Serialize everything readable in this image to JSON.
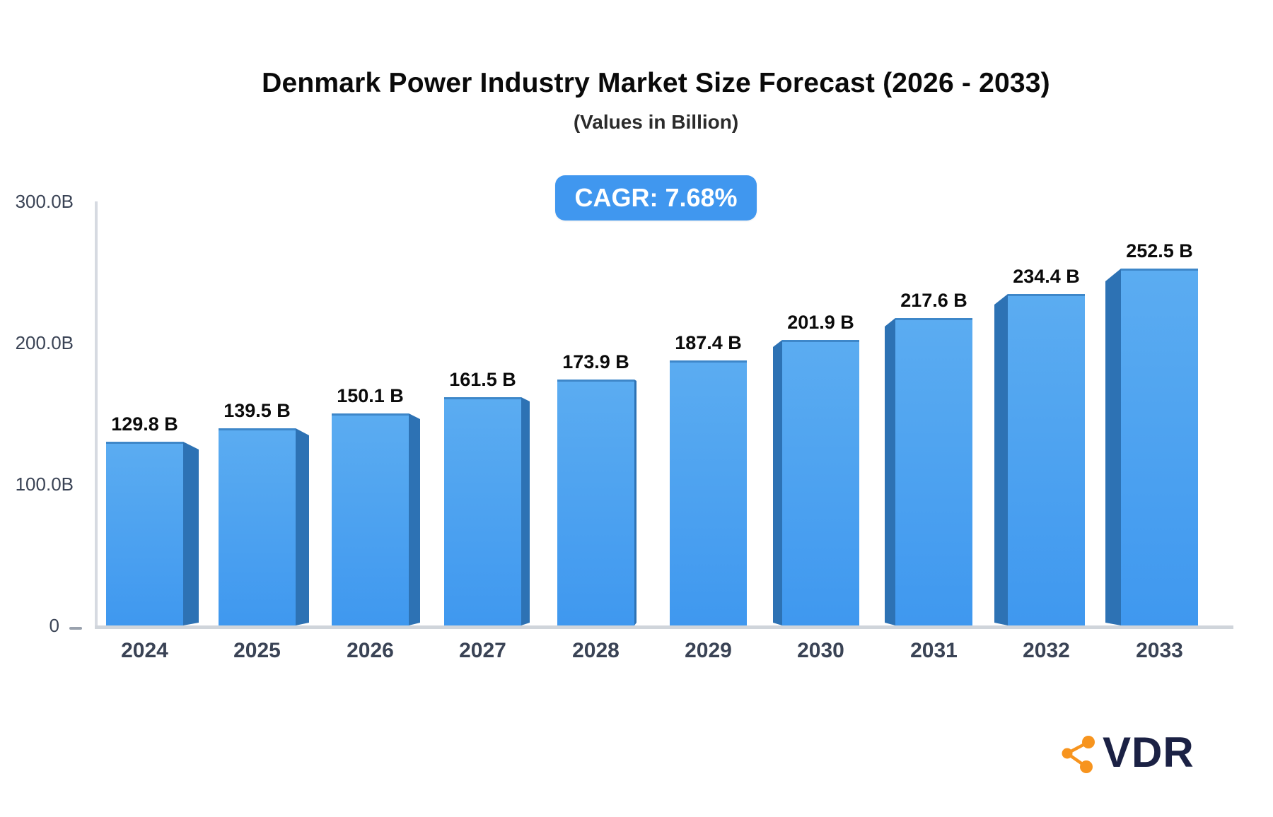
{
  "header": {
    "title": "Denmark Power Industry Market Size Forecast (2026 - 2033)",
    "subtitle": "(Values in Billion)",
    "cagr_label": "CAGR: 7.68%"
  },
  "brand": {
    "name": "VDR",
    "icon": "share-network-icon",
    "icon_color": "#F7941E",
    "text_color": "#1B2144"
  },
  "chart_data": {
    "type": "bar",
    "title": "Denmark Power Industry Market Size Forecast (2026 - 2033)",
    "subtitle": "(Values in Billion)",
    "annotation": "CAGR: 7.68%",
    "categories": [
      "2024",
      "2025",
      "2026",
      "2027",
      "2028",
      "2029",
      "2030",
      "2031",
      "2032",
      "2033"
    ],
    "values": [
      129.8,
      139.5,
      150.1,
      161.5,
      173.9,
      187.4,
      201.9,
      217.6,
      234.4,
      252.5
    ],
    "value_labels": [
      "129.8 B",
      "139.5 B",
      "150.1 B",
      "161.5 B",
      "173.9 B",
      "187.4 B",
      "201.9 B",
      "217.6 B",
      "234.4 B",
      "252.5 B"
    ],
    "unit": "Billion",
    "xlabel": "",
    "ylabel": "",
    "ylim": [
      0,
      300
    ],
    "y_ticks": [
      {
        "label": "300.0B",
        "value": 300,
        "tick_dash": false
      },
      {
        "label": "200.0B",
        "value": 200,
        "tick_dash": false
      },
      {
        "label": "100.0B",
        "value": 100,
        "tick_dash": false
      },
      {
        "label": "0",
        "value": 0,
        "tick_dash": true
      }
    ],
    "grid": false,
    "legend": false,
    "style": {
      "pseudo_3d": true,
      "bar_face_top": "#5BACF1",
      "bar_face_bottom": "#3F98EF",
      "bar_side": "#2D72B4",
      "bar_top_edge": "#3E87C9",
      "axis_color": "#D6DAE1",
      "baseline_color": "#D0D5DB",
      "tick_text_color": "#3A4355",
      "value_label_color": "#0B0B0B",
      "badge_bg": "#4097EF",
      "badge_text": "#FFFFFF"
    }
  }
}
